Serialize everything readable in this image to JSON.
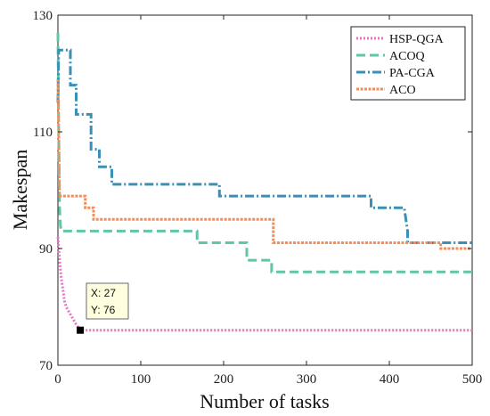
{
  "chart_data": {
    "type": "line",
    "xlabel": "Number of tasks",
    "ylabel": "Makespan",
    "xlim": [
      0,
      500
    ],
    "ylim": [
      70,
      130
    ],
    "xticks": [
      "0",
      "100",
      "200",
      "300",
      "400",
      "500"
    ],
    "yticks": [
      "70",
      "90",
      "110",
      "130"
    ],
    "legend_position": "top-right",
    "grid": false,
    "series": [
      {
        "name": "HSP-QGA",
        "color": "#e377c2",
        "dash": "dotted",
        "points": [
          [
            0,
            92
          ],
          [
            2,
            88
          ],
          [
            4,
            85
          ],
          [
            6,
            83
          ],
          [
            8,
            81
          ],
          [
            10,
            80
          ],
          [
            14,
            79
          ],
          [
            18,
            78
          ],
          [
            22,
            77
          ],
          [
            27,
            76
          ],
          [
            60,
            76
          ],
          [
            100,
            76
          ],
          [
            200,
            76
          ],
          [
            300,
            76
          ],
          [
            400,
            76
          ],
          [
            500,
            76
          ]
        ]
      },
      {
        "name": "ACOQ",
        "color": "#5fc6a8",
        "dash": "dashed",
        "points": [
          [
            0,
            127
          ],
          [
            1,
            110
          ],
          [
            2,
            97
          ],
          [
            3,
            94
          ],
          [
            4,
            93
          ],
          [
            168,
            93
          ],
          [
            168,
            91
          ],
          [
            228,
            91
          ],
          [
            228,
            88
          ],
          [
            258,
            88
          ],
          [
            258,
            86
          ],
          [
            500,
            86
          ]
        ]
      },
      {
        "name": "PA-CGA",
        "color": "#3a8fb7",
        "dash": "dashdot",
        "points": [
          [
            0,
            115
          ],
          [
            1,
            124
          ],
          [
            15,
            124
          ],
          [
            15,
            118
          ],
          [
            22,
            118
          ],
          [
            22,
            113
          ],
          [
            40,
            113
          ],
          [
            40,
            107
          ],
          [
            50,
            107
          ],
          [
            50,
            104
          ],
          [
            65,
            104
          ],
          [
            65,
            101
          ],
          [
            195,
            101
          ],
          [
            195,
            99
          ],
          [
            378,
            99
          ],
          [
            378,
            97
          ],
          [
            418,
            97
          ],
          [
            422,
            93
          ],
          [
            422,
            91
          ],
          [
            500,
            91
          ]
        ]
      },
      {
        "name": "ACO",
        "color": "#f28e5c",
        "dash": "dotted-dense",
        "points": [
          [
            0,
            119
          ],
          [
            1,
            110
          ],
          [
            2,
            99
          ],
          [
            33,
            99
          ],
          [
            33,
            97
          ],
          [
            43,
            97
          ],
          [
            43,
            95
          ],
          [
            260,
            95
          ],
          [
            260,
            91
          ],
          [
            462,
            91
          ],
          [
            462,
            90
          ],
          [
            500,
            90
          ]
        ]
      }
    ],
    "annotation": {
      "x_label": "X: 27",
      "y_label": "Y: 76",
      "x": 27,
      "y": 76
    }
  }
}
